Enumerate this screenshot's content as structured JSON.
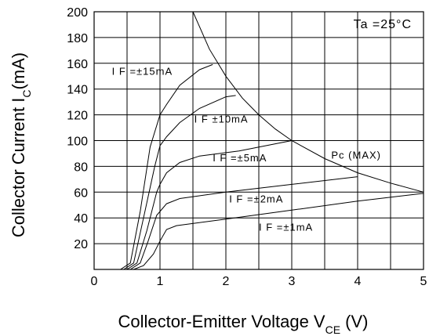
{
  "chart_data": {
    "type": "line",
    "xlabel": "Collector-Emitter Voltage V",
    "xlabel_sub": "CE",
    "xlabel_unit": " (V)",
    "ylabel": "Collector Current I",
    "ylabel_sub": "C",
    "ylabel_unit": "(mA)",
    "xlim": [
      0,
      5
    ],
    "ylim": [
      0,
      200
    ],
    "x_ticks": [
      {
        "v": 0,
        "label": "0"
      },
      {
        "v": 1,
        "label": "1"
      },
      {
        "v": 2,
        "label": "2"
      },
      {
        "v": 3,
        "label": "3"
      },
      {
        "v": 4,
        "label": "4"
      },
      {
        "v": 5,
        "label": "5"
      }
    ],
    "y_ticks": [
      {
        "v": 20,
        "label": "20"
      },
      {
        "v": 40,
        "label": "40"
      },
      {
        "v": 60,
        "label": "60"
      },
      {
        "v": 80,
        "label": "80"
      },
      {
        "v": 100,
        "label": "100"
      },
      {
        "v": 120,
        "label": "120"
      },
      {
        "v": 140,
        "label": "140"
      },
      {
        "v": 160,
        "label": "160"
      },
      {
        "v": 180,
        "label": "180"
      },
      {
        "v": 200,
        "label": "200"
      }
    ],
    "grid": true,
    "annotation_top_right": "Ta =25°C",
    "series": [
      {
        "id": "if15",
        "label": "I F =±15mA",
        "label_pos": [
          0.27,
          151
        ],
        "points": [
          [
            0,
            0
          ],
          [
            0.4,
            0
          ],
          [
            0.55,
            5
          ],
          [
            0.7,
            45
          ],
          [
            0.85,
            95
          ],
          [
            1.0,
            120
          ],
          [
            1.1,
            128
          ],
          [
            1.3,
            143
          ],
          [
            1.6,
            155
          ],
          [
            1.8,
            159
          ]
        ]
      },
      {
        "id": "if10",
        "label": "I F ±10mA",
        "label_pos": [
          1.52,
          114
        ],
        "points": [
          [
            0,
            0
          ],
          [
            0.45,
            0
          ],
          [
            0.6,
            5
          ],
          [
            0.75,
            40
          ],
          [
            0.92,
            80
          ],
          [
            1.0,
            96
          ],
          [
            1.1,
            103
          ],
          [
            1.3,
            114
          ],
          [
            1.6,
            125
          ],
          [
            2.0,
            134
          ],
          [
            2.15,
            135
          ]
        ]
      },
      {
        "id": "if5",
        "label": "I F =±5mA",
        "label_pos": [
          1.8,
          84
        ],
        "points": [
          [
            0,
            0
          ],
          [
            0.5,
            0
          ],
          [
            0.65,
            5
          ],
          [
            0.8,
            30
          ],
          [
            0.95,
            60
          ],
          [
            1.0,
            66
          ],
          [
            1.1,
            75
          ],
          [
            1.3,
            83
          ],
          [
            1.6,
            88
          ],
          [
            2.2,
            92
          ],
          [
            3.0,
            100
          ]
        ]
      },
      {
        "id": "if2",
        "label": "I F =±2mA",
        "label_pos": [
          2.05,
          52
        ],
        "points": [
          [
            0,
            0
          ],
          [
            0.55,
            0
          ],
          [
            0.7,
            5
          ],
          [
            0.82,
            22
          ],
          [
            0.95,
            42
          ],
          [
            1.0,
            45
          ],
          [
            1.1,
            51
          ],
          [
            1.3,
            55
          ],
          [
            2.0,
            60
          ],
          [
            3.0,
            66
          ],
          [
            4.0,
            72
          ]
        ]
      },
      {
        "id": "if1",
        "label": "I F =±1mA",
        "label_pos": [
          2.5,
          30
        ],
        "points": [
          [
            0,
            0
          ],
          [
            0.6,
            0
          ],
          [
            0.75,
            3
          ],
          [
            0.9,
            12
          ],
          [
            1.0,
            22
          ],
          [
            1.1,
            31
          ],
          [
            1.25,
            34
          ],
          [
            2.0,
            39
          ],
          [
            3.0,
            46
          ],
          [
            4.0,
            53
          ],
          [
            5.0,
            59
          ]
        ]
      },
      {
        "id": "pcmax",
        "label": "Pc (MAX)",
        "label_pos": [
          3.6,
          86
        ],
        "points": [
          [
            1.5,
            200
          ],
          [
            1.75,
            171
          ],
          [
            2.0,
            150
          ],
          [
            2.25,
            133
          ],
          [
            2.5,
            120
          ],
          [
            2.75,
            109
          ],
          [
            3.0,
            100
          ],
          [
            3.5,
            86
          ],
          [
            4.0,
            75
          ],
          [
            4.5,
            67
          ],
          [
            5.0,
            60
          ]
        ]
      }
    ]
  }
}
